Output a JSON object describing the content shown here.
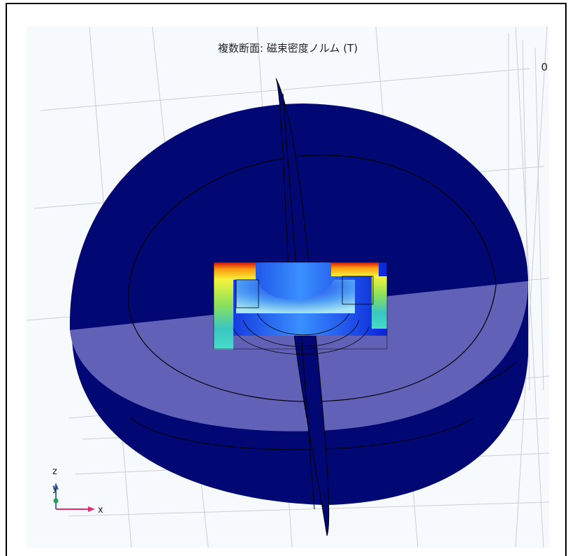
{
  "plot": {
    "title": "複数断面: 磁束密度ノルム (T)",
    "clipped_label": "0"
  },
  "axes": {
    "x_label": "x",
    "y_label": "y",
    "z_label": "z",
    "x_color": "#e0306a",
    "y_color": "#22a050",
    "z_color": "#3a6fc0"
  },
  "colors": {
    "sphere": "#020873",
    "cut_plane": "#6261b8",
    "grid": "#c9ced6"
  }
}
